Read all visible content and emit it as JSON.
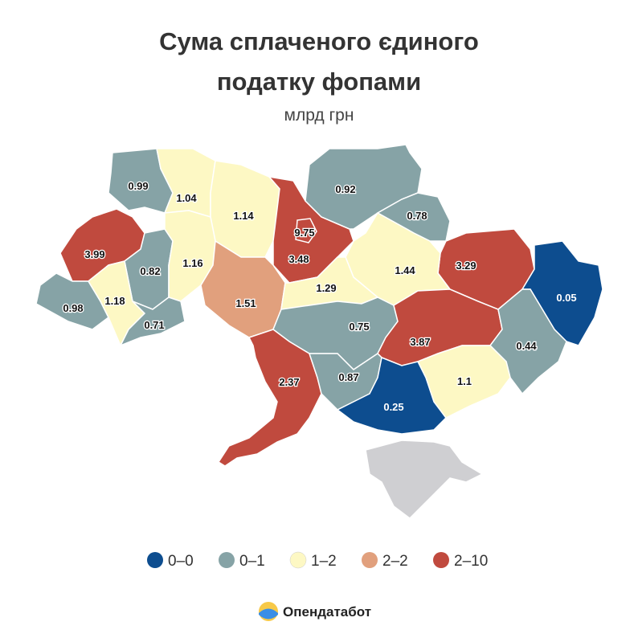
{
  "chart_data": {
    "type": "map",
    "title": [
      "Сума сплаченого єдиного",
      "податку фопами"
    ],
    "subtitle": "млрд грн",
    "values": [
      0.99,
      1.04,
      1.14,
      9.75,
      3.48,
      0.92,
      0.78,
      3.29,
      0.05,
      1.44,
      3.99,
      0.82,
      1.16,
      1.51,
      1.29,
      0.98,
      1.18,
      0.71,
      0.75,
      3.87,
      0.44,
      2.37,
      0.87,
      1.1,
      0.25
    ],
    "colors": [
      "#86a3a6",
      "#fdf8c4",
      "#fdf8c4",
      "#c04a3e",
      "#c04a3e",
      "#86a3a6",
      "#86a3a6",
      "#c04a3e",
      "#0d4d8f",
      "#fdf8c4",
      "#c04a3e",
      "#86a3a6",
      "#fdf8c4",
      "#e1a07d",
      "#fdf8c4",
      "#86a3a6",
      "#fdf8c4",
      "#86a3a6",
      "#86a3a6",
      "#c04a3e",
      "#86a3a6",
      "#c04a3e",
      "#86a3a6",
      "#fdf8c4",
      "#0d4d8f"
    ],
    "legend": [
      {
        "label": "0–0",
        "color": "#0d4d8f"
      },
      {
        "label": "0–1",
        "color": "#86a3a6"
      },
      {
        "label": "1–2",
        "color": "#fdf8c4"
      },
      {
        "label": "2–2",
        "color": "#e1a07d"
      },
      {
        "label": "2–10",
        "color": "#c04a3e"
      }
    ],
    "brand": "Опендатабот"
  }
}
